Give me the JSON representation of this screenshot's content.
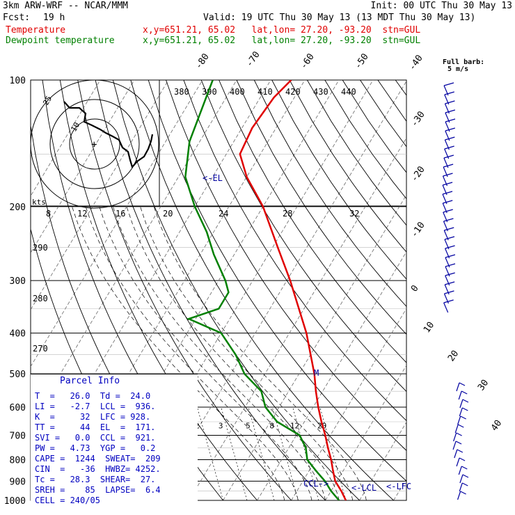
{
  "header": {
    "model": "3km ARW-WRF -- NCAR/MMM",
    "init": "Init: 00 UTC Thu 30 May 13",
    "fcst_label": "Fcst:",
    "fcst_value": "19 h",
    "valid": "Valid: 19 UTC Thu 30 May 13 (13 MDT Thu 30 May 13)"
  },
  "legend": {
    "temperature": "Temperature",
    "dewpoint": "Dewpoint temperature",
    "coords": "x,y=651.21, 65.02   lat,lon= 27.20, -93.20  stn=GUL",
    "temp_color": "#e00000",
    "dew_color": "#008000"
  },
  "barb_label": {
    "line1": "Full barb:",
    "line2": "5 m/s"
  },
  "hodograph": {
    "axis_label": "kts",
    "ring_labels": [
      "25",
      "10"
    ],
    "center": "+"
  },
  "annotations": {
    "el": "<-EL",
    "ccl": "CCL->",
    "lcl": "<-LCL",
    "lfc": "<-LFC",
    "m": "M"
  },
  "parcel_info": {
    "title": "Parcel Info",
    "rows": [
      "T  =   26.0  Td =  24.0",
      "LI =   -2.7  LCL =  936.",
      "K  =     32  LFC = 928.",
      "TT =     44  EL  =  171.",
      "SVI =   0.0  CCL =  921.",
      "PW =   4.73  YGP =   0.2",
      "CAPE =  1244  SWEAT=  209",
      "CIN  =   -36  HWBZ= 4252.",
      "Tc =   28.3  SHEAR=  27.",
      "SREH =    85  LAPSE=  6.4",
      "CELL = 240/05"
    ]
  },
  "chart_data": {
    "type": "line",
    "title": "",
    "xlabel": "",
    "ylabel": "",
    "pressure_levels": [
      "100",
      "200",
      "300",
      "400",
      "500",
      "600",
      "700",
      "800",
      "900",
      "1000"
    ],
    "isotherm_labels": [
      "-80",
      "-70",
      "-60",
      "-50",
      "-40",
      "-30",
      "-20",
      "-10",
      "0",
      "10",
      "20",
      "30",
      "40"
    ],
    "theta_labels": [
      "380",
      "390",
      "400",
      "410",
      "420",
      "430",
      "440"
    ],
    "dry_adiabat_labels": [
      "290",
      "280",
      "270"
    ],
    "mixing_ratio_labels": [
      "2",
      "3",
      "5",
      "8",
      "12",
      "20"
    ],
    "hodograph_speed_labels": [
      "8",
      "12",
      "16",
      "20",
      "24",
      "28",
      "32"
    ],
    "series": [
      {
        "name": "Temperature",
        "color": "#e00000",
        "points": [
          [
            1000,
            26.0
          ],
          [
            950,
            23.0
          ],
          [
            900,
            19.5
          ],
          [
            850,
            17.0
          ],
          [
            800,
            14.5
          ],
          [
            750,
            11.5
          ],
          [
            700,
            8.5
          ],
          [
            650,
            5.0
          ],
          [
            600,
            1.5
          ],
          [
            550,
            -2.0
          ],
          [
            500,
            -5.5
          ],
          [
            450,
            -10.0
          ],
          [
            400,
            -15.0
          ],
          [
            350,
            -21.5
          ],
          [
            300,
            -29.0
          ],
          [
            250,
            -38.5
          ],
          [
            200,
            -50.0
          ],
          [
            170,
            -60.0
          ],
          [
            150,
            -66.0
          ],
          [
            130,
            -67.0
          ],
          [
            110,
            -66.0
          ],
          [
            100,
            -64.0
          ]
        ]
      },
      {
        "name": "Dewpoint temperature",
        "color": "#008000",
        "points": [
          [
            1000,
            24.0
          ],
          [
            950,
            20.0
          ],
          [
            900,
            16.5
          ],
          [
            850,
            12.0
          ],
          [
            800,
            7.5
          ],
          [
            750,
            5.0
          ],
          [
            700,
            1.0
          ],
          [
            650,
            -8.0
          ],
          [
            600,
            -14.0
          ],
          [
            550,
            -18.0
          ],
          [
            500,
            -26.0
          ],
          [
            450,
            -32.0
          ],
          [
            400,
            -40.0
          ],
          [
            370,
            -52.0
          ],
          [
            350,
            -45.0
          ],
          [
            320,
            -45.0
          ],
          [
            300,
            -48.0
          ],
          [
            260,
            -56.0
          ],
          [
            230,
            -62.0
          ],
          [
            200,
            -70.0
          ],
          [
            170,
            -78.0
          ],
          [
            140,
            -83.0
          ],
          [
            100,
            -87.0
          ]
        ]
      }
    ]
  }
}
